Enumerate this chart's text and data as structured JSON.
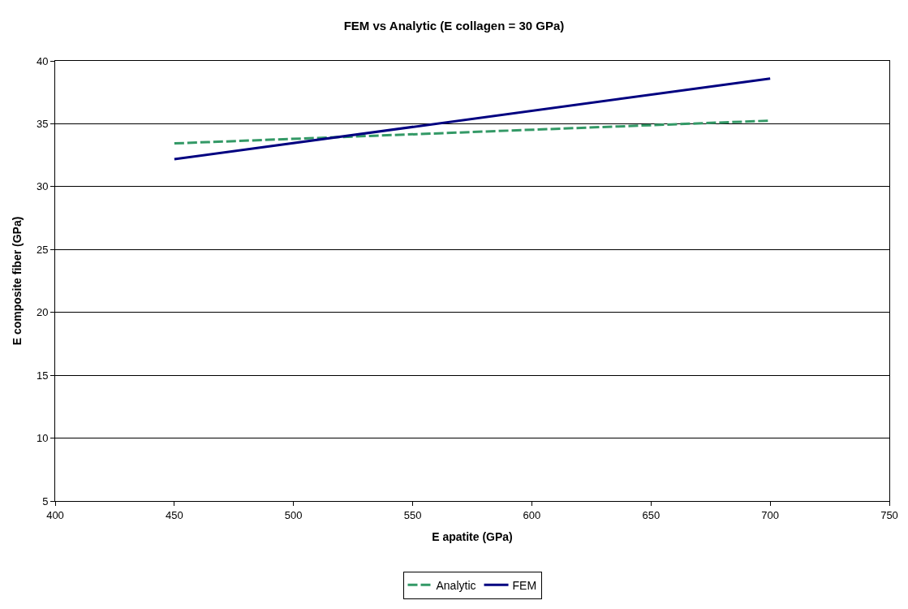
{
  "chart_data": {
    "type": "line",
    "title": "FEM vs Analytic (E collagen = 30 GPa)",
    "xlabel": "E apatite (GPa)",
    "ylabel": "E composite fiber (GPa)",
    "series": [
      {
        "name": "Analytic",
        "color": "#339966",
        "values": [
          33.44,
          35.25
        ],
        "line_style": "dashed"
      },
      {
        "name": "FEM",
        "color": "#000080",
        "values": [
          32.18,
          38.6
        ],
        "line_style": "solid"
      }
    ],
    "x": [
      450,
      700
    ],
    "xlim": [
      400,
      750
    ],
    "xticks": [
      400,
      450,
      500,
      550,
      600,
      650,
      700,
      750
    ],
    "ylim": [
      5,
      40
    ],
    "yticks": [
      5,
      10,
      15,
      20,
      25,
      30,
      35,
      40
    ],
    "grid": "y",
    "legend": "bottom",
    "marker": "none"
  }
}
